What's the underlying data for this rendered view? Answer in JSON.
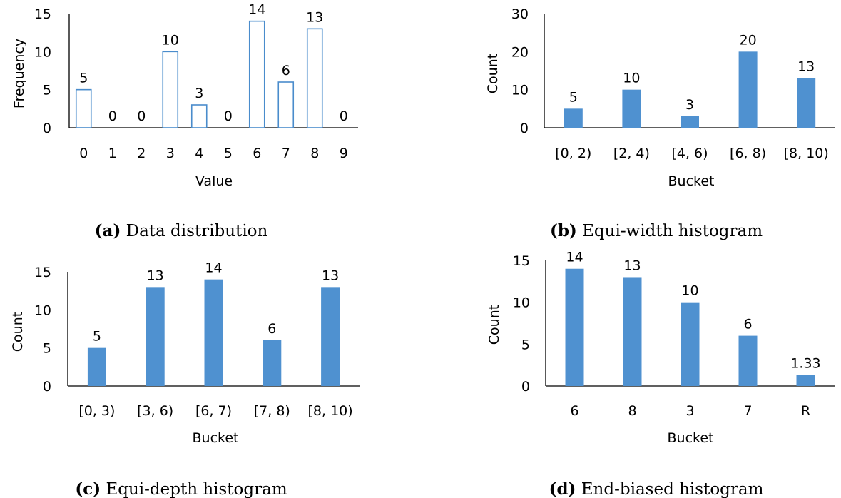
{
  "chart_data": [
    {
      "type": "bar",
      "caption_letter": "(a)",
      "caption_text": "Data distribution",
      "xlabel": "Value",
      "ylabel": "Frequency",
      "ylim": [
        0,
        15
      ],
      "yticks": [
        0,
        5,
        10,
        15
      ],
      "categories": [
        "0",
        "1",
        "2",
        "3",
        "4",
        "5",
        "6",
        "7",
        "8",
        "9"
      ],
      "values": [
        5,
        0,
        0,
        10,
        3,
        0,
        14,
        6,
        13,
        0
      ],
      "data_labels": [
        "5",
        "0",
        "0",
        "10",
        "3",
        "0",
        "14",
        "6",
        "13",
        "0"
      ],
      "bar_style": "outline",
      "bar_color": "#4a8ccc"
    },
    {
      "type": "bar",
      "caption_letter": "(b)",
      "caption_text": "Equi-width histogram",
      "xlabel": "Bucket",
      "ylabel": "Count",
      "ylim": [
        0,
        30
      ],
      "yticks": [
        0,
        10,
        20,
        30
      ],
      "categories": [
        "[0, 2)",
        "[2, 4)",
        "[4, 6)",
        "[6, 8)",
        "[8, 10)"
      ],
      "values": [
        5,
        10,
        3,
        20,
        13
      ],
      "data_labels": [
        "5",
        "10",
        "3",
        "20",
        "13"
      ],
      "bar_style": "filled",
      "bar_color": "#4f91d0"
    },
    {
      "type": "bar",
      "caption_letter": "(c)",
      "caption_text": "Equi-depth histogram",
      "xlabel": "Bucket",
      "ylabel": "Count",
      "ylim": [
        0,
        15
      ],
      "yticks": [
        0,
        5,
        10,
        15
      ],
      "categories": [
        "[0, 3)",
        "[3, 6)",
        "[6, 7)",
        "[7, 8)",
        "[8, 10)"
      ],
      "values": [
        5,
        13,
        14,
        6,
        13
      ],
      "data_labels": [
        "5",
        "13",
        "14",
        "6",
        "13"
      ],
      "bar_style": "filled",
      "bar_color": "#4f91d0"
    },
    {
      "type": "bar",
      "caption_letter": "(d)",
      "caption_text": "End-biased histogram",
      "xlabel": "Bucket",
      "ylabel": "Count",
      "ylim": [
        0,
        15
      ],
      "yticks": [
        0,
        5,
        10,
        15
      ],
      "categories": [
        "6",
        "8",
        "3",
        "7",
        "R"
      ],
      "values": [
        14,
        13,
        10,
        6,
        1.33
      ],
      "data_labels": [
        "14",
        "13",
        "10",
        "6",
        "1.33"
      ],
      "bar_style": "filled",
      "bar_color": "#4f91d0"
    }
  ]
}
